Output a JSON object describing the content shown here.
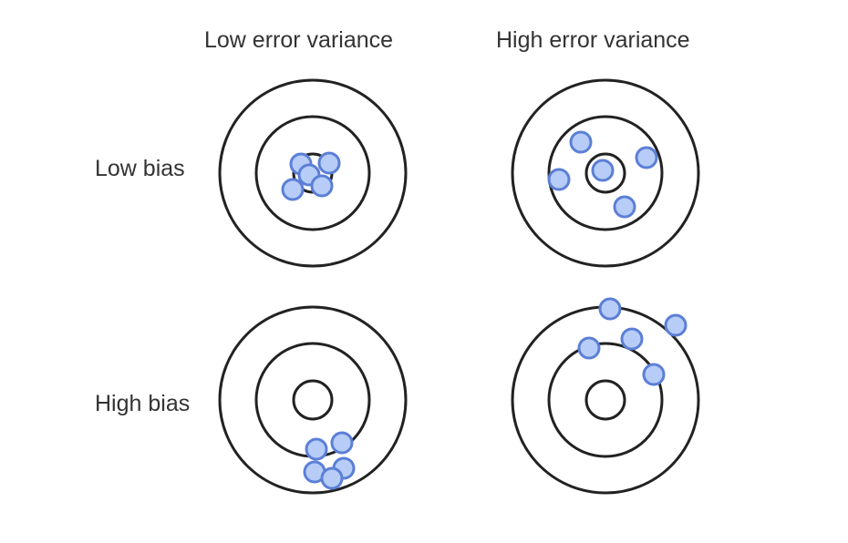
{
  "columns": [
    {
      "label": "Low error variance"
    },
    {
      "label": "High error variance"
    }
  ],
  "rows": [
    {
      "label": "Low bias"
    },
    {
      "label": "High bias"
    }
  ],
  "colors": {
    "ring_stroke": "#222222",
    "dot_fill": "#b7cdf7",
    "dot_stroke": "#5c7fd6",
    "text": "#333333"
  },
  "targets": [
    {
      "name": "low-bias-low-variance",
      "row": 0,
      "col": 0
    },
    {
      "name": "low-bias-high-variance",
      "row": 0,
      "col": 1
    },
    {
      "name": "high-bias-low-variance",
      "row": 1,
      "col": 0
    },
    {
      "name": "high-bias-high-variance",
      "row": 1,
      "col": 1
    }
  ]
}
